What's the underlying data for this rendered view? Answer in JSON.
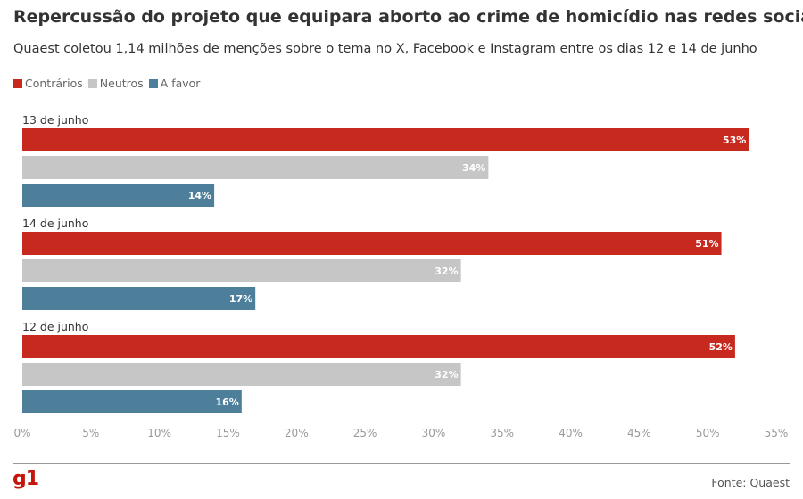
{
  "title": "Repercussão do projeto que equipara aborto ao crime de homicídio nas redes sociais",
  "subtitle": "Quaest coletou 1,14 milhões de menções sobre o tema no X, Facebook e Instagram entre os dias 12 e 14 de junho",
  "legend": [
    {
      "label": "Contrários",
      "color": "#c8291f"
    },
    {
      "label": "Neutros",
      "color": "#c6c6c6"
    },
    {
      "label": "A favor",
      "color": "#4d7f9a"
    }
  ],
  "source": "Fonte: Quaest",
  "logo": "g1",
  "chart_data": {
    "type": "bar",
    "orientation": "horizontal",
    "categories": [
      "13 de junho",
      "14 de junho",
      "12 de junho"
    ],
    "series": [
      {
        "name": "Contrários",
        "values": [
          53,
          51,
          52
        ],
        "labels": [
          "53%",
          "51%",
          "52%"
        ],
        "color": "#c8291f"
      },
      {
        "name": "Neutros",
        "values": [
          34,
          32,
          32
        ],
        "labels": [
          "34%",
          "32%",
          "32%"
        ],
        "color": "#c6c6c6"
      },
      {
        "name": "A favor",
        "values": [
          14,
          17,
          16
        ],
        "labels": [
          "14%",
          "17%",
          "16%"
        ],
        "color": "#4d7f9a"
      }
    ],
    "xlim": [
      0,
      55
    ],
    "xticks": [
      0,
      5,
      10,
      15,
      20,
      25,
      30,
      35,
      40,
      45,
      50,
      55
    ],
    "xtick_labels": [
      "0%",
      "5%",
      "10%",
      "15%",
      "20%",
      "25%",
      "30%",
      "35%",
      "40%",
      "45%",
      "50%",
      "55%"
    ],
    "legend_position": "top-left",
    "grid": false
  }
}
